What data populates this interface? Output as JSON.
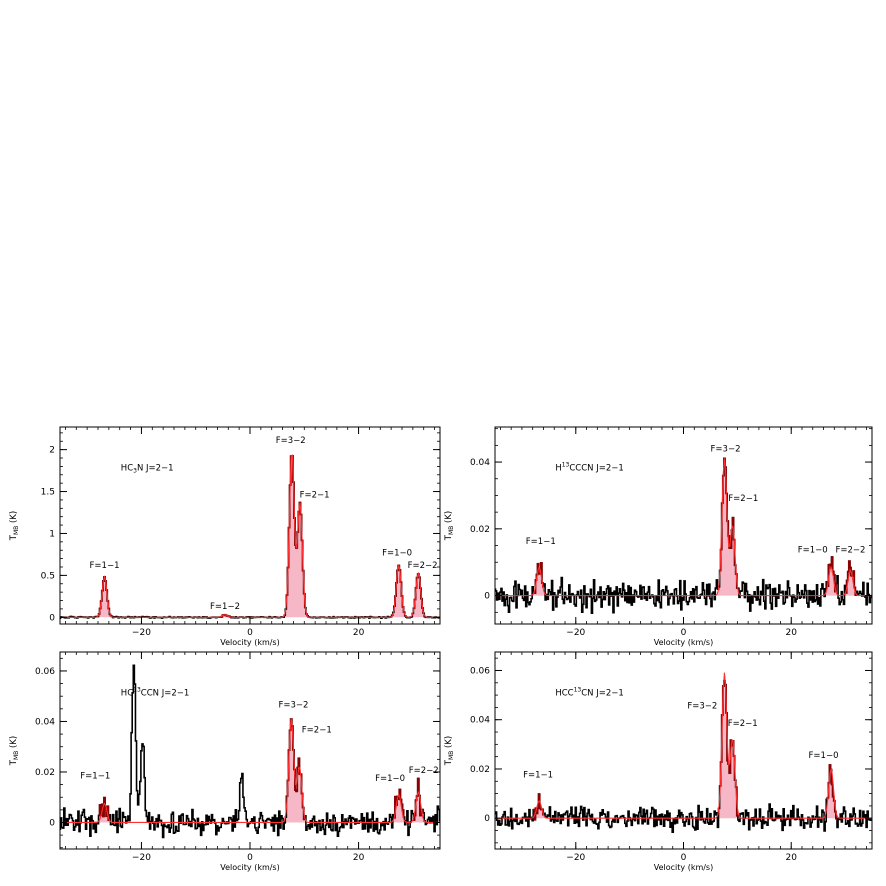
{
  "chart_data": [
    {
      "type": "line",
      "id": "hc3n",
      "title_main": "HC",
      "title_sub": "3",
      "title_rest": "N J=2−1",
      "title_sup": "",
      "xlabel": "Velocity (km/s)",
      "ylabel_main": "T",
      "ylabel_sub": "MB",
      "ylabel_unit": " (K)",
      "xlim": [
        -35,
        35
      ],
      "ylim": [
        -0.08,
        2.27
      ],
      "xticks": [
        -20,
        0,
        20
      ],
      "xtick_labels": [
        "−20",
        "0",
        "20"
      ],
      "yticks": [
        0,
        0.5,
        1,
        1.5,
        2
      ],
      "ytick_labels": [
        "0",
        "0.5",
        "1",
        "1.5",
        "2"
      ],
      "minor_step_x": 2,
      "minor_step_y": 0.1,
      "noise": 0.006,
      "lines": [
        {
          "center": -26.8,
          "amp": 0.48,
          "width": 0.45
        },
        {
          "center": -4.6,
          "amp": 0.03,
          "width": 0.45
        },
        {
          "center": 7.7,
          "amp": 1.97,
          "width": 0.45
        },
        {
          "center": 9.2,
          "amp": 1.36,
          "width": 0.45
        },
        {
          "center": 27.4,
          "amp": 0.62,
          "width": 0.45
        },
        {
          "center": 31.0,
          "amp": 0.52,
          "width": 0.45
        }
      ],
      "extra_peaks": [],
      "annotations": [
        {
          "text": "F=1−1",
          "x": -26.8,
          "y": 0.59
        },
        {
          "text": "F=1−2",
          "x": -4.6,
          "y": 0.1
        },
        {
          "text": "F=3−2",
          "x": 7.5,
          "y": 2.08
        },
        {
          "text": "F=2−1",
          "x": 11.9,
          "y": 1.43
        },
        {
          "text": "F=1−0",
          "x": 27.1,
          "y": 0.74
        },
        {
          "text": "F=2−2",
          "x": 31.8,
          "y": 0.59
        }
      ]
    },
    {
      "type": "line",
      "id": "h13cccn",
      "title_main": "H",
      "title_sub": "",
      "title_sup": "13",
      "title_rest": "CCCN J=2−1",
      "xlabel": "Velocity (km/s)",
      "ylabel_main": "T",
      "ylabel_sub": "MB",
      "ylabel_unit": " (K)",
      "xlim": [
        -35,
        35
      ],
      "ylim": [
        -0.0085,
        0.0505
      ],
      "xticks": [
        -20,
        0,
        20
      ],
      "xtick_labels": [
        "−20",
        "0",
        "20"
      ],
      "yticks": [
        0,
        0.02,
        0.04
      ],
      "ytick_labels": [
        "0",
        "0.02",
        "0.04"
      ],
      "minor_step_x": 2,
      "minor_step_y": 0.005,
      "noise": 0.0032,
      "lines": [
        {
          "center": -26.8,
          "amp": 0.0085,
          "width": 0.45
        },
        {
          "center": 7.6,
          "amp": 0.041,
          "width": 0.45
        },
        {
          "center": 9.1,
          "amp": 0.021,
          "width": 0.45
        },
        {
          "center": 27.4,
          "amp": 0.0085,
          "width": 0.45
        },
        {
          "center": 31.0,
          "amp": 0.0075,
          "width": 0.45
        }
      ],
      "extra_peaks": [],
      "annotations": [
        {
          "text": "F=1−1",
          "x": -26.5,
          "y": 0.0154
        },
        {
          "text": "F=3−2",
          "x": 7.8,
          "y": 0.0432
        },
        {
          "text": "F=2−1",
          "x": 11.1,
          "y": 0.0284
        },
        {
          "text": "F=1−0",
          "x": 24.0,
          "y": 0.0129
        },
        {
          "text": "F=2−2",
          "x": 31.0,
          "y": 0.0129
        }
      ]
    },
    {
      "type": "line",
      "id": "hc13ccn",
      "title_main": "HC",
      "title_sub": "",
      "title_sup": "13",
      "title_rest": "CCN J=2−1",
      "xlabel": "Velocity (km/s)",
      "ylabel_main": "T",
      "ylabel_sub": "MB",
      "ylabel_unit": " (K)",
      "xlim": [
        -35,
        35
      ],
      "ylim": [
        -0.0105,
        0.0675
      ],
      "xticks": [
        -20,
        0,
        20
      ],
      "xtick_labels": [
        "−20",
        "0",
        "20"
      ],
      "yticks": [
        0,
        0.02,
        0.04,
        0.06
      ],
      "ytick_labels": [
        "0",
        "0.02",
        "0.04",
        "0.06"
      ],
      "minor_step_x": 2,
      "minor_step_y": 0.005,
      "noise": 0.0036,
      "lines": [
        {
          "center": -26.8,
          "amp": 0.0075,
          "width": 0.45
        },
        {
          "center": 7.6,
          "amp": 0.041,
          "width": 0.45
        },
        {
          "center": 9.1,
          "amp": 0.022,
          "width": 0.45
        },
        {
          "center": 27.4,
          "amp": 0.011,
          "width": 0.45
        },
        {
          "center": 31.0,
          "amp": 0.012,
          "width": 0.45
        }
      ],
      "extra_peaks": [
        {
          "center": -21.4,
          "amp": 0.061
        },
        {
          "center": -19.8,
          "amp": 0.033
        },
        {
          "center": -1.5,
          "amp": 0.022
        }
      ],
      "annotations": [
        {
          "text": "F=1−1",
          "x": -28.5,
          "y": 0.0175
        },
        {
          "text": "F=3−2",
          "x": 8.0,
          "y": 0.0455
        },
        {
          "text": "F=2−1",
          "x": 12.3,
          "y": 0.0357
        },
        {
          "text": "F=1−0",
          "x": 25.8,
          "y": 0.0165
        },
        {
          "text": "F=2−2",
          "x": 32.0,
          "y": 0.0195
        }
      ]
    },
    {
      "type": "line",
      "id": "hcc13cn",
      "title_main": "HCC",
      "title_sub": "",
      "title_sup": "13",
      "title_rest": "CN J=2−1",
      "xlabel": "Velocity (km/s)",
      "ylabel_main": "T",
      "ylabel_sub": "MB",
      "ylabel_unit": " (K)",
      "xlim": [
        -35,
        35
      ],
      "ylim": [
        -0.0125,
        0.0675
      ],
      "xticks": [
        -20,
        0,
        20
      ],
      "xtick_labels": [
        "−20",
        "0",
        "20"
      ],
      "yticks": [
        0,
        0.02,
        0.04,
        0.06
      ],
      "ytick_labels": [
        "0",
        "0.02",
        "0.04",
        "0.06"
      ],
      "minor_step_x": 2,
      "minor_step_y": 0.005,
      "noise": 0.0034,
      "lines": [
        {
          "center": -26.8,
          "amp": 0.007,
          "width": 0.45
        },
        {
          "center": 7.6,
          "amp": 0.059,
          "width": 0.45
        },
        {
          "center": 9.1,
          "amp": 0.032,
          "width": 0.45
        },
        {
          "center": 27.4,
          "amp": 0.02,
          "width": 0.45
        }
      ],
      "extra_peaks": [],
      "annotations": [
        {
          "text": "F=1−1",
          "x": -27.0,
          "y": 0.0165
        },
        {
          "text": "F=3−2",
          "x": 3.5,
          "y": 0.0445
        },
        {
          "text": "F=2−1",
          "x": 11.0,
          "y": 0.0375
        },
        {
          "text": "F=1−0",
          "x": 26.0,
          "y": 0.0245
        }
      ]
    }
  ],
  "colors": {
    "line": "#000000",
    "fit": "#ff3030",
    "fill": "#f6b8c6",
    "peak_outline": "#8b0000",
    "frame": "#000000"
  }
}
